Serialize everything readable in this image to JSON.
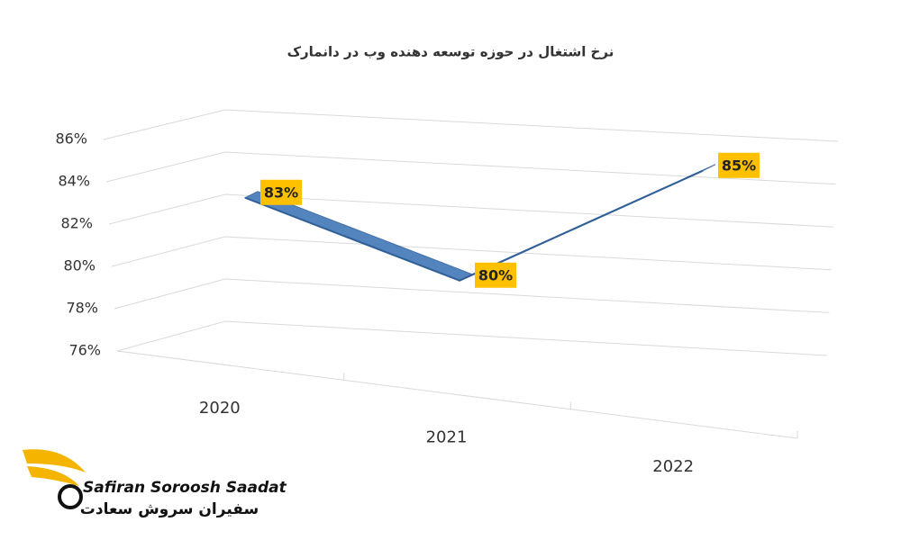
{
  "chart_data": {
    "type": "line3d",
    "title": "نرخ اشتغال در حوزه توسعه دهنده وب در دانمارک",
    "categories": [
      "2020",
      "2021",
      "2022"
    ],
    "series": [
      {
        "color": "#4a7ebb",
        "values": [
          83,
          80,
          85
        ],
        "value_labels": [
          "83%",
          "80%",
          "85%"
        ]
      }
    ],
    "ylim": [
      76,
      86
    ],
    "yticks": [
      {
        "value": 76,
        "label": "76%"
      },
      {
        "value": 78,
        "label": "78%"
      },
      {
        "value": 80,
        "label": "80%"
      },
      {
        "value": 82,
        "label": "82%"
      },
      {
        "value": 84,
        "label": "84%"
      },
      {
        "value": 86,
        "label": "86%"
      }
    ],
    "grid": true,
    "label_color": "#ffc000"
  },
  "logo": {
    "name_en": "Safiran Soroosh Saadat",
    "name_fa": "سفیران سروش سعادت"
  }
}
